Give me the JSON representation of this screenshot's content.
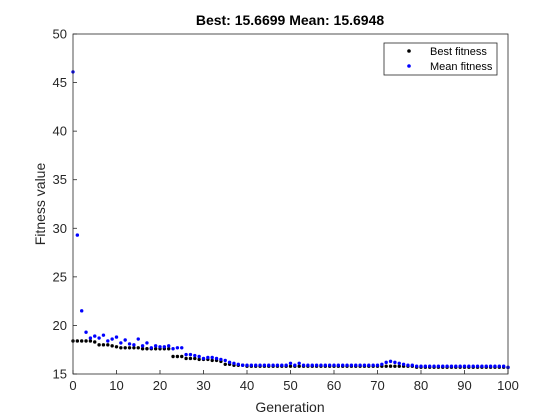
{
  "chart_data": {
    "type": "scatter",
    "title": "Best: 15.6699 Mean: 15.6948",
    "xlabel": "Generation",
    "ylabel": "Fitness value",
    "xlim": [
      0,
      100
    ],
    "ylim": [
      15,
      50
    ],
    "xticks": [
      0,
      10,
      20,
      30,
      40,
      50,
      60,
      70,
      80,
      90,
      100
    ],
    "yticks": [
      15,
      20,
      25,
      30,
      35,
      40,
      45,
      50
    ],
    "grid": false,
    "legend_position": "top-right",
    "series": [
      {
        "name": "Best fitness",
        "color": "#000000",
        "x": [
          0,
          1,
          2,
          3,
          4,
          5,
          6,
          7,
          8,
          9,
          10,
          11,
          12,
          13,
          14,
          15,
          16,
          17,
          18,
          19,
          20,
          21,
          22,
          23,
          24,
          25,
          26,
          27,
          28,
          29,
          30,
          31,
          32,
          33,
          34,
          35,
          36,
          37,
          38,
          39,
          40,
          41,
          42,
          43,
          44,
          45,
          46,
          47,
          48,
          49,
          50,
          51,
          52,
          53,
          54,
          55,
          56,
          57,
          58,
          59,
          60,
          61,
          62,
          63,
          64,
          65,
          66,
          67,
          68,
          69,
          70,
          71,
          72,
          73,
          74,
          75,
          76,
          77,
          78,
          79,
          80,
          81,
          82,
          83,
          84,
          85,
          86,
          87,
          88,
          89,
          90,
          91,
          92,
          93,
          94,
          95,
          96,
          97,
          98,
          99,
          100
        ],
        "y": [
          18.4,
          18.4,
          18.4,
          18.4,
          18.4,
          18.3,
          18.0,
          18.0,
          18.0,
          17.9,
          17.8,
          17.7,
          17.7,
          17.7,
          17.7,
          17.7,
          17.6,
          17.6,
          17.6,
          17.6,
          17.6,
          17.6,
          17.6,
          16.8,
          16.8,
          16.8,
          16.6,
          16.6,
          16.6,
          16.5,
          16.5,
          16.5,
          16.4,
          16.4,
          16.3,
          16.0,
          16.0,
          15.9,
          15.9,
          15.9,
          15.8,
          15.8,
          15.8,
          15.8,
          15.8,
          15.8,
          15.8,
          15.8,
          15.8,
          15.8,
          15.8,
          15.8,
          15.8,
          15.8,
          15.8,
          15.8,
          15.8,
          15.8,
          15.8,
          15.8,
          15.8,
          15.8,
          15.8,
          15.8,
          15.8,
          15.8,
          15.8,
          15.8,
          15.8,
          15.8,
          15.8,
          15.8,
          15.8,
          15.8,
          15.8,
          15.8,
          15.8,
          15.8,
          15.8,
          15.7,
          15.7,
          15.7,
          15.7,
          15.7,
          15.7,
          15.7,
          15.7,
          15.7,
          15.7,
          15.7,
          15.7,
          15.7,
          15.7,
          15.7,
          15.7,
          15.7,
          15.7,
          15.7,
          15.7,
          15.7,
          15.67
        ]
      },
      {
        "name": "Mean fitness",
        "color": "#0000ff",
        "x": [
          0,
          1,
          2,
          3,
          4,
          5,
          6,
          7,
          8,
          9,
          10,
          11,
          12,
          13,
          14,
          15,
          16,
          17,
          18,
          19,
          20,
          21,
          22,
          23,
          24,
          25,
          26,
          27,
          28,
          29,
          30,
          31,
          32,
          33,
          34,
          35,
          36,
          37,
          38,
          39,
          40,
          41,
          42,
          43,
          44,
          45,
          46,
          47,
          48,
          49,
          50,
          51,
          52,
          53,
          54,
          55,
          56,
          57,
          58,
          59,
          60,
          61,
          62,
          63,
          64,
          65,
          66,
          67,
          68,
          69,
          70,
          71,
          72,
          73,
          74,
          75,
          76,
          77,
          78,
          79,
          80,
          81,
          82,
          83,
          84,
          85,
          86,
          87,
          88,
          89,
          90,
          91,
          92,
          93,
          94,
          95,
          96,
          97,
          98,
          99,
          100
        ],
        "y": [
          46.1,
          29.3,
          21.5,
          19.3,
          18.7,
          18.9,
          18.7,
          19.0,
          18.4,
          18.6,
          18.8,
          18.2,
          18.5,
          18.1,
          18.0,
          18.6,
          17.9,
          18.2,
          17.7,
          17.9,
          17.8,
          17.8,
          17.9,
          17.6,
          17.7,
          17.7,
          17.0,
          17.0,
          16.9,
          16.8,
          16.6,
          16.7,
          16.7,
          16.6,
          16.5,
          16.4,
          16.2,
          16.1,
          16.0,
          15.9,
          15.9,
          15.9,
          15.9,
          15.9,
          15.9,
          15.9,
          15.9,
          15.9,
          15.9,
          15.9,
          16.1,
          15.9,
          16.1,
          15.9,
          15.9,
          15.9,
          15.9,
          15.9,
          15.9,
          15.9,
          15.9,
          15.9,
          15.9,
          15.9,
          15.9,
          15.9,
          15.9,
          15.9,
          15.9,
          15.9,
          15.9,
          16.0,
          16.2,
          16.3,
          16.2,
          16.1,
          16.0,
          15.9,
          15.9,
          15.8,
          15.8,
          15.8,
          15.8,
          15.8,
          15.8,
          15.8,
          15.8,
          15.8,
          15.8,
          15.8,
          15.8,
          15.8,
          15.8,
          15.8,
          15.8,
          15.8,
          15.8,
          15.8,
          15.8,
          15.8,
          15.69
        ]
      }
    ]
  }
}
